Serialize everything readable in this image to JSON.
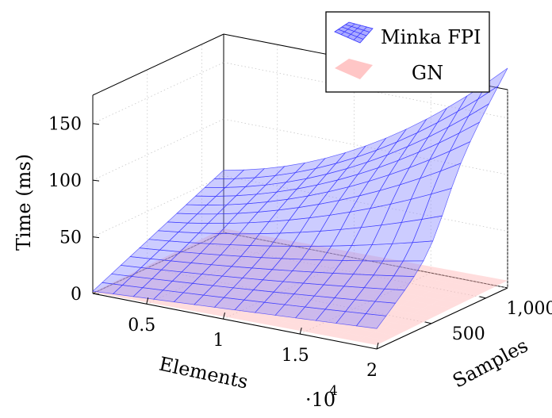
{
  "chart_data": {
    "type": "surface3d",
    "xlabel": "Elements",
    "ylabel": "Samples",
    "zlabel": "Time (ms)",
    "x_multiplier_label": "·10",
    "x_multiplier_exponent": "4",
    "x_ticks": [
      0.5,
      1,
      1.5,
      2
    ],
    "x_tick_labels": [
      "0.5",
      "1",
      "1.5",
      "2"
    ],
    "y_ticks": [
      500,
      1000
    ],
    "y_tick_labels": [
      "500",
      "1,000"
    ],
    "z_ticks": [
      0,
      50,
      100,
      150
    ],
    "z_tick_labels": [
      "0",
      "50",
      "100",
      "150"
    ],
    "xlim": [
      0.15,
      2.0
    ],
    "ylim": [
      0,
      1200
    ],
    "zlim": [
      0,
      175
    ],
    "grid": true,
    "legend_position": "top-right",
    "series": [
      {
        "name": "Minka FPI",
        "color": "#3333ff",
        "fill": "#8f8fff",
        "x": [
          0.15,
          1.075,
          2.0
        ],
        "y": [
          0,
          600,
          1200
        ],
        "z_corner_estimates": {
          "x_min_y_min": 2,
          "x_max_y_min": 18,
          "x_min_y_max": 55,
          "x_max_y_max": 185
        }
      },
      {
        "name": "GN",
        "color": "#ff9999",
        "fill": "#ffb3b3",
        "x": [
          0.15,
          1.075,
          2.0
        ],
        "y": [
          0,
          600,
          1200
        ],
        "z_corner_estimates": {
          "x_min_y_min": 1,
          "x_max_y_min": 3,
          "x_min_y_max": 3,
          "x_max_y_max": 6
        }
      }
    ]
  }
}
